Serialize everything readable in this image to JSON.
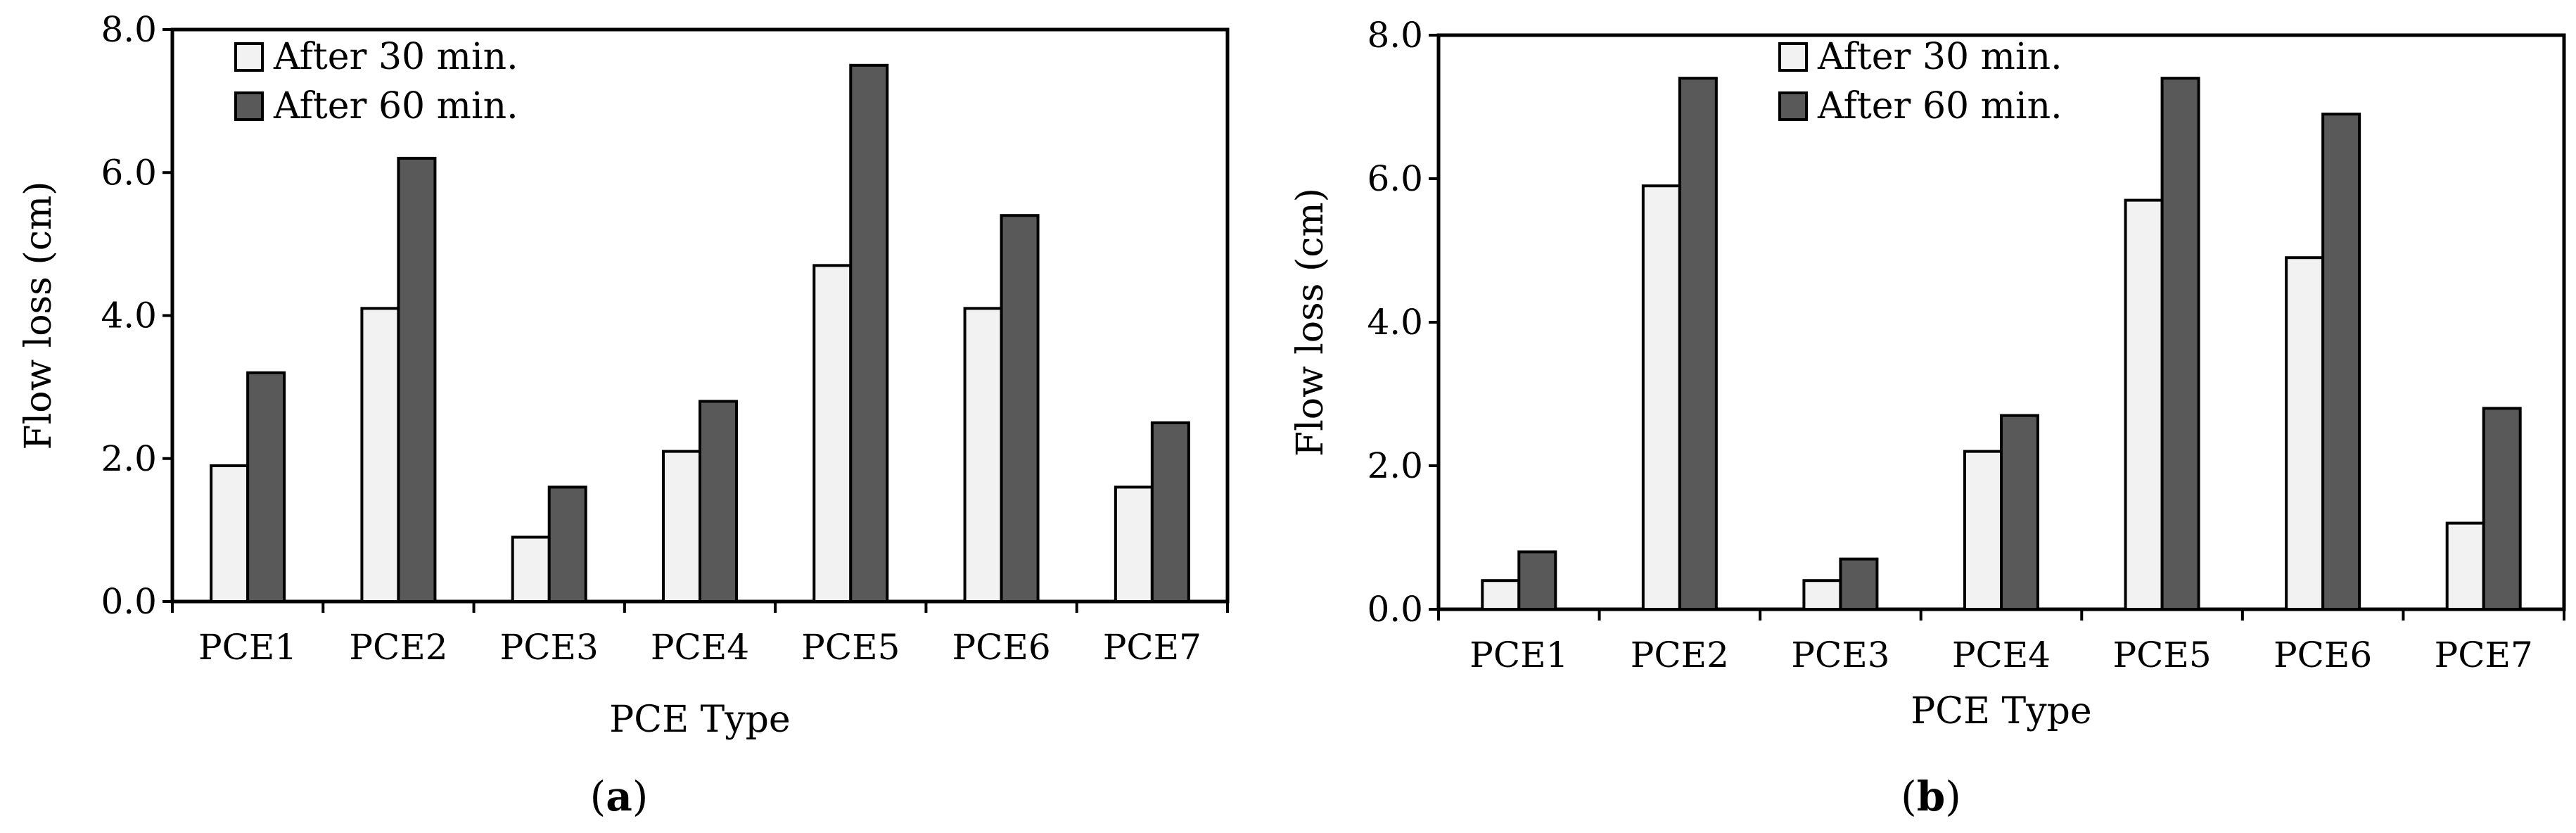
{
  "colors": {
    "series_30": "#f2f2f2",
    "series_60": "#595959",
    "stroke": "#000000"
  },
  "chart_data": [
    {
      "type": "bar",
      "panel_label": "a",
      "title": "",
      "xlabel": "PCE Type",
      "ylabel": "Flow loss (cm)",
      "ylim": [
        0,
        8
      ],
      "yticks": [
        "0.0",
        "2.0",
        "4.0",
        "6.0",
        "8.0"
      ],
      "categories": [
        "PCE1",
        "PCE2",
        "PCE3",
        "PCE4",
        "PCE5",
        "PCE6",
        "PCE7"
      ],
      "legend_position": "top-left",
      "series": [
        {
          "name": "After 30 min.",
          "values": [
            1.9,
            4.1,
            0.9,
            2.1,
            4.7,
            4.1,
            1.6
          ]
        },
        {
          "name": "After 60 min.",
          "values": [
            3.2,
            6.2,
            1.6,
            2.8,
            7.5,
            5.4,
            2.5
          ]
        }
      ]
    },
    {
      "type": "bar",
      "panel_label": "b",
      "title": "",
      "xlabel": "PCE Type",
      "ylabel": "Flow loss (cm)",
      "ylim": [
        0,
        8
      ],
      "yticks": [
        "0.0",
        "2.0",
        "4.0",
        "6.0",
        "8.0"
      ],
      "categories": [
        "PCE1",
        "PCE2",
        "PCE3",
        "PCE4",
        "PCE5",
        "PCE6",
        "PCE7"
      ],
      "legend_position": "top-center",
      "series": [
        {
          "name": "After 30 min.",
          "values": [
            0.4,
            5.9,
            0.4,
            2.2,
            5.7,
            4.9,
            1.2
          ]
        },
        {
          "name": "After 60 min.",
          "values": [
            0.8,
            7.4,
            0.7,
            2.7,
            7.4,
            6.9,
            2.8
          ]
        }
      ]
    }
  ]
}
